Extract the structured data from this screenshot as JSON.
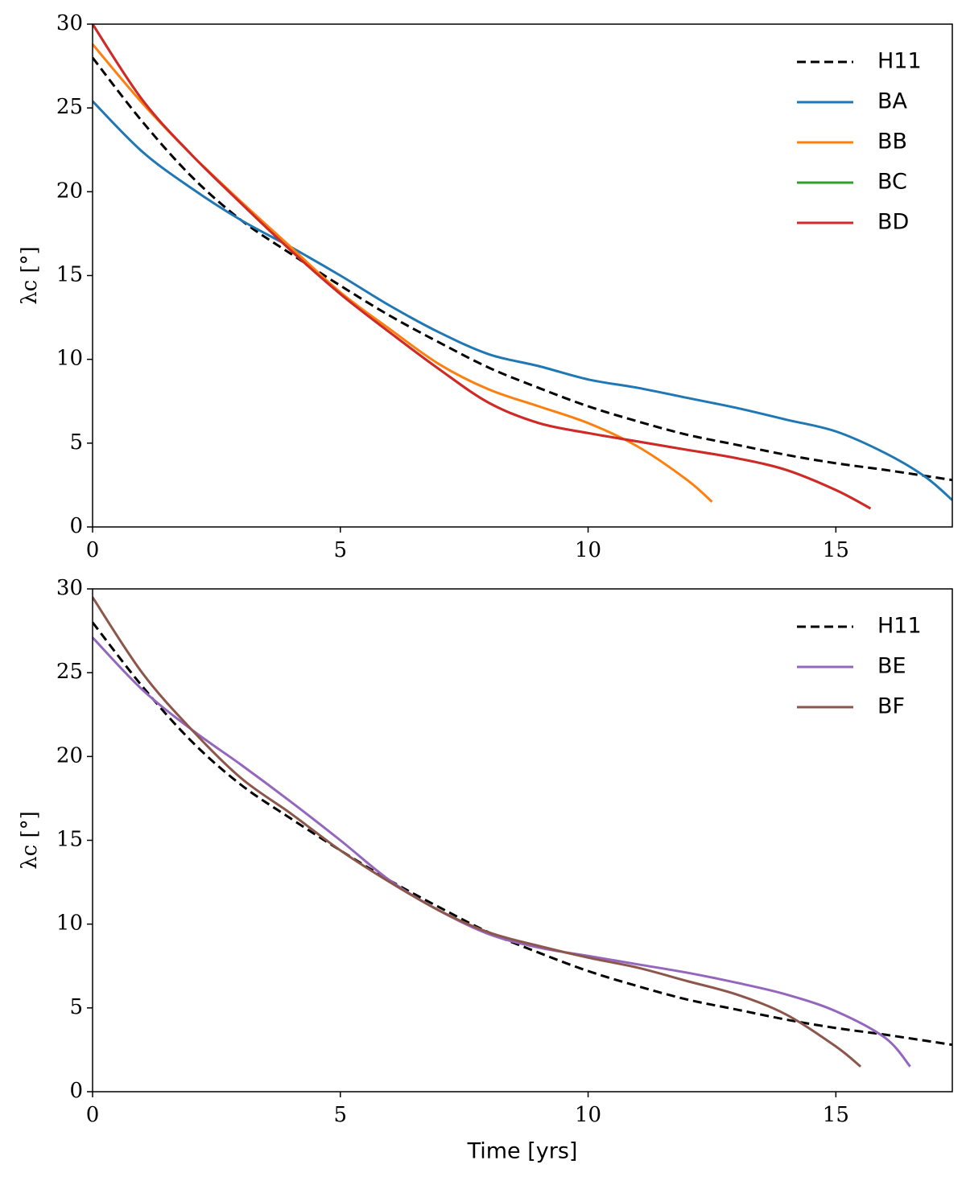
{
  "chart_data": [
    {
      "type": "line",
      "ylabel": "λc [°]",
      "xlim": [
        0,
        17.35
      ],
      "ylim": [
        0,
        30
      ],
      "xticks": [
        0,
        5,
        10,
        15
      ],
      "yticks": [
        0,
        5,
        10,
        15,
        20,
        25,
        30
      ],
      "legend": "upper right",
      "series": [
        {
          "name": "H11",
          "color": "#000000",
          "linestyle": "dashed",
          "x": [
            0,
            1,
            2,
            3,
            4,
            5,
            6,
            7,
            8,
            9,
            10,
            11,
            12,
            13,
            14,
            15,
            16,
            17.35
          ],
          "values": [
            28,
            24.2,
            20.9,
            18.3,
            16.3,
            14.4,
            12.6,
            11,
            9.5,
            8.3,
            7.2,
            6.3,
            5.5,
            4.9,
            4.3,
            3.8,
            3.4,
            2.8
          ]
        },
        {
          "name": "BA",
          "color": "#1f77b4",
          "linestyle": "solid",
          "x": [
            0,
            1,
            2,
            3,
            4,
            5,
            6,
            7,
            8,
            9,
            10,
            11,
            12,
            13,
            14,
            15,
            16,
            16.8,
            17.35
          ],
          "values": [
            25.4,
            22.4,
            20.2,
            18.3,
            16.7,
            15,
            13.2,
            11.6,
            10.3,
            9.6,
            8.8,
            8.3,
            7.7,
            7.1,
            6.4,
            5.7,
            4.4,
            3,
            1.6
          ]
        },
        {
          "name": "BB",
          "color": "#ff7f0e",
          "linestyle": "solid",
          "x": [
            0,
            1,
            2,
            3,
            4,
            5,
            6,
            7,
            8,
            9,
            10,
            11,
            12,
            12.5
          ],
          "values": [
            28.8,
            25.3,
            22.2,
            19.4,
            16.7,
            14,
            11.8,
            9.7,
            8.2,
            7.2,
            6.2,
            4.8,
            2.8,
            1.5
          ]
        },
        {
          "name": "BC",
          "color": "#2ca02c",
          "linestyle": "solid",
          "x": [
            0,
            1,
            2,
            3,
            4,
            5,
            6,
            7,
            8,
            9,
            10,
            11,
            12,
            13,
            14,
            15,
            15.7
          ],
          "values": [
            30,
            25.5,
            22.2,
            19.3,
            16.5,
            13.9,
            11.6,
            9.4,
            7.4,
            6.2,
            5.6,
            5.1,
            4.6,
            4.1,
            3.4,
            2.2,
            1.1
          ]
        },
        {
          "name": "BD",
          "color": "#d62728",
          "linestyle": "solid",
          "x": [
            0,
            1,
            2,
            3,
            4,
            5,
            6,
            7,
            8,
            9,
            10,
            11,
            12,
            13,
            14,
            15,
            15.7
          ],
          "values": [
            30,
            25.5,
            22.2,
            19.3,
            16.5,
            13.9,
            11.6,
            9.4,
            7.4,
            6.2,
            5.6,
            5.1,
            4.6,
            4.1,
            3.4,
            2.2,
            1.1
          ]
        }
      ]
    },
    {
      "type": "line",
      "ylabel": "λc [°]",
      "xlabel": "Time [yrs]",
      "xlim": [
        0,
        17.35
      ],
      "ylim": [
        0,
        30
      ],
      "xticks": [
        0,
        5,
        10,
        15
      ],
      "yticks": [
        0,
        5,
        10,
        15,
        20,
        25,
        30
      ],
      "legend": "upper right",
      "series": [
        {
          "name": "H11",
          "color": "#000000",
          "linestyle": "dashed",
          "x": [
            0,
            1,
            2,
            3,
            4,
            5,
            6,
            7,
            8,
            9,
            10,
            11,
            12,
            13,
            14,
            15,
            16,
            17.35
          ],
          "values": [
            28,
            24.2,
            20.9,
            18.3,
            16.3,
            14.4,
            12.6,
            11,
            9.5,
            8.3,
            7.2,
            6.3,
            5.5,
            4.9,
            4.3,
            3.8,
            3.4,
            2.8
          ]
        },
        {
          "name": "BE",
          "color": "#9467bd",
          "linestyle": "solid",
          "x": [
            0,
            1,
            2,
            3,
            4,
            5,
            6,
            7,
            8,
            9,
            10,
            11,
            12,
            13,
            14,
            15,
            16,
            16.5
          ],
          "values": [
            27.1,
            24,
            21.6,
            19.5,
            17.3,
            15,
            12.6,
            10.8,
            9.4,
            8.6,
            8.1,
            7.6,
            7.1,
            6.5,
            5.8,
            4.8,
            3.2,
            1.5
          ]
        },
        {
          "name": "BF",
          "color": "#8c564b",
          "linestyle": "solid",
          "x": [
            0,
            1,
            2,
            3,
            4,
            5,
            6,
            7,
            8,
            9,
            10,
            11,
            12,
            13,
            14,
            15,
            15.5
          ],
          "values": [
            29.5,
            25,
            21.6,
            18.7,
            16.6,
            14.4,
            12.5,
            10.8,
            9.5,
            8.7,
            8,
            7.4,
            6.6,
            5.8,
            4.6,
            2.7,
            1.5
          ]
        }
      ]
    }
  ]
}
